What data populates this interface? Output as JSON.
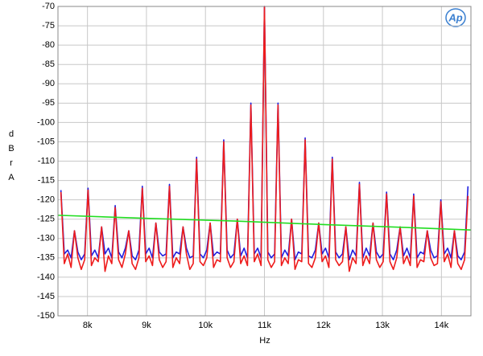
{
  "chart_data": {
    "type": "line",
    "logo": "Ap",
    "x_label": "Hz",
    "y_label": "dBr A",
    "xlim": [
      7500,
      14500
    ],
    "ylim": [
      -150,
      -70
    ],
    "xticks": [
      {
        "value": 8000,
        "label": "8k"
      },
      {
        "value": 9000,
        "label": "9k"
      },
      {
        "value": 10000,
        "label": "10k"
      },
      {
        "value": 11000,
        "label": "11k"
      },
      {
        "value": 12000,
        "label": "12k"
      },
      {
        "value": 13000,
        "label": "13k"
      },
      {
        "value": 14000,
        "label": "14k"
      }
    ],
    "yticks": [
      -70,
      -75,
      -80,
      -85,
      -90,
      -95,
      -100,
      -105,
      -110,
      -115,
      -120,
      -125,
      -130,
      -135,
      -140,
      -145,
      -150
    ],
    "grid": true,
    "x": [
      7550,
      7607.5,
      7665,
      7722.5,
      7780,
      7837.5,
      7895,
      7952.5,
      8010,
      8067.5,
      8125,
      8182.5,
      8240,
      8297.5,
      8355,
      8412.5,
      8470,
      8527.5,
      8585,
      8642.5,
      8700,
      8757.5,
      8815,
      8872.5,
      8930,
      8987.5,
      9045,
      9102.5,
      9160,
      9217.5,
      9275,
      9332.5,
      9390,
      9447.5,
      9505,
      9562.5,
      9620,
      9677.5,
      9735,
      9792.5,
      9850,
      9907.5,
      9965,
      10022.5,
      10080,
      10137.5,
      10195,
      10252.5,
      10310,
      10367.5,
      10425,
      10482.5,
      10540,
      10597.5,
      10655,
      10712.5,
      10770,
      10827.5,
      10885,
      10942.5,
      11000,
      11057.5,
      11115,
      11172.5,
      11230,
      11287.5,
      11345,
      11402.5,
      11460,
      11517.5,
      11575,
      11632.5,
      11690,
      11747.5,
      11805,
      11862.5,
      11920,
      11977.5,
      12035,
      12092.5,
      12150,
      12207.5,
      12265,
      12322.5,
      12380,
      12437.5,
      12495,
      12552.5,
      12610,
      12667.5,
      12725,
      12782.5,
      12840,
      12897.5,
      12955,
      13012.5,
      13070,
      13127.5,
      13185,
      13242.5,
      13300,
      13357.5,
      13415,
      13472.5,
      13530,
      13587.5,
      13645,
      13702.5,
      13760,
      13817.5,
      13875,
      13932.5,
      13990,
      14047.5,
      14105,
      14162.5,
      14220,
      14277.5,
      14335,
      14392.5,
      14450
    ],
    "series": [
      {
        "color": "#2020e0",
        "values": [
          -117.5,
          -134,
          -133,
          -135,
          -128,
          -133.5,
          -135.5,
          -134,
          -117,
          -134.5,
          -133,
          -135,
          -127,
          -134,
          -132.5,
          -135,
          -121.5,
          -133.5,
          -135,
          -132.5,
          -128,
          -134.5,
          -135.5,
          -133,
          -116.5,
          -134,
          -132.5,
          -135,
          -126,
          -133.5,
          -134.5,
          -134,
          -116,
          -135,
          -133.5,
          -134,
          -127,
          -132.5,
          -135,
          -134.5,
          -109,
          -134,
          -135,
          -133,
          -126,
          -134.5,
          -133.5,
          -134,
          -104.5,
          -133,
          -135,
          -134,
          -125,
          -134.5,
          -132.5,
          -135,
          -95,
          -134,
          -132.5,
          -135,
          -70,
          -133.5,
          -135,
          -134,
          -95,
          -135,
          -133,
          -134.5,
          -125,
          -135.5,
          -133.5,
          -134,
          -104,
          -134.5,
          -135,
          -133,
          -126,
          -134,
          -132.5,
          -135,
          -109,
          -133.5,
          -135,
          -134,
          -127,
          -135.5,
          -133,
          -134.5,
          -115.5,
          -135,
          -132.5,
          -134.5,
          -126,
          -133.5,
          -135,
          -134,
          -118,
          -134,
          -135.5,
          -133,
          -127,
          -134.5,
          -132.5,
          -135,
          -118.5,
          -135,
          -133.5,
          -134,
          -128,
          -133,
          -135,
          -134.5,
          -120,
          -134,
          -132.5,
          -135,
          -128,
          -134.5,
          -135.5,
          -133.5,
          -116.5
        ]
      },
      {
        "color": "#ee1c1c",
        "values": [
          -118,
          -136.5,
          -134,
          -137.5,
          -128,
          -135,
          -138,
          -135.5,
          -117.5,
          -137,
          -135,
          -136,
          -127,
          -138.5,
          -134.5,
          -136.5,
          -122,
          -135.5,
          -137.5,
          -134,
          -128,
          -136.5,
          -138,
          -135,
          -117,
          -136,
          -134.5,
          -137,
          -126,
          -135.5,
          -137.5,
          -136,
          -116.5,
          -137.5,
          -135,
          -136.5,
          -127,
          -134,
          -138,
          -136.5,
          -109.5,
          -136,
          -137,
          -135,
          -126,
          -137.5,
          -135.5,
          -136,
          -105,
          -135,
          -137.5,
          -136,
          -125,
          -136.5,
          -134.5,
          -137,
          -95.5,
          -136,
          -134,
          -137,
          -70,
          -135.5,
          -137.5,
          -136,
          -95.5,
          -137,
          -135,
          -136.5,
          -125,
          -138,
          -135.5,
          -136,
          -104.5,
          -136.5,
          -137.5,
          -135,
          -126,
          -136,
          -134.5,
          -137.5,
          -109.5,
          -135.5,
          -137,
          -136,
          -127,
          -138.5,
          -135,
          -136.5,
          -116,
          -137,
          -134.5,
          -136.5,
          -126,
          -135.5,
          -137.5,
          -136,
          -118.5,
          -136,
          -138,
          -135,
          -127,
          -136.5,
          -134.5,
          -137,
          -119,
          -137.5,
          -135.5,
          -136,
          -128,
          -135,
          -137,
          -136.5,
          -120.5,
          -136,
          -134,
          -137.5,
          -128,
          -136.5,
          -138,
          -135.5,
          -119
        ]
      },
      {
        "color": "#22dd22",
        "x": [
          7500,
          9000,
          10500,
          12000,
          13500,
          14500
        ],
        "values": [
          -124,
          -124.8,
          -125.5,
          -126.4,
          -127.2,
          -127.8
        ]
      }
    ]
  }
}
